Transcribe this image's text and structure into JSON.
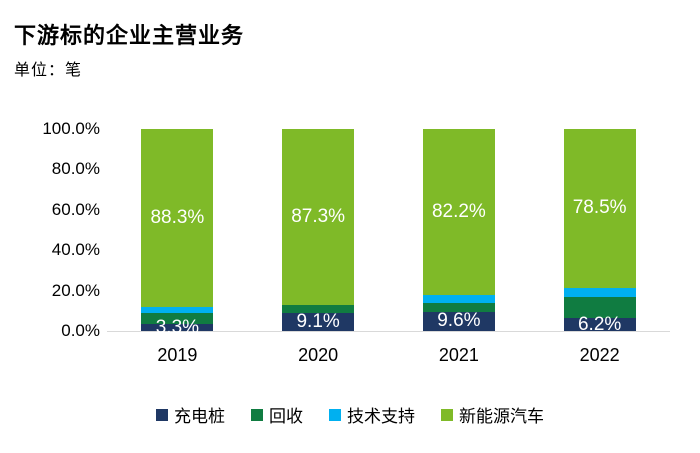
{
  "header": {
    "title": "下游标的企业主营业务",
    "subtitle": "单位：笔"
  },
  "colors": {
    "charging_pile": "#1F3864",
    "recycling": "#107C41",
    "tech_support": "#00B0F0",
    "nev": "#7FBA28",
    "axis_line": "#D9D9D9",
    "text": "#000000",
    "data_label": "#FFFFFF",
    "background": "#FFFFFF"
  },
  "chart_data": {
    "type": "bar",
    "stacked": true,
    "percent_stacked": true,
    "title": "下游标的企业主营业务",
    "subtitle": "单位：笔",
    "categories": [
      "2019",
      "2020",
      "2021",
      "2022"
    ],
    "series": [
      {
        "name": "充电桩",
        "color": "#1F3864",
        "values": [
          3.3,
          9.1,
          9.6,
          6.2
        ],
        "labels": [
          "3.3%",
          "9.1%",
          "9.6%",
          "6.2%"
        ]
      },
      {
        "name": "回收",
        "color": "#107C41",
        "values": [
          5.8,
          3.6,
          4.1,
          10.5
        ],
        "labels": null
      },
      {
        "name": "技术支持",
        "color": "#00B0F0",
        "values": [
          2.6,
          0.0,
          4.1,
          4.8
        ],
        "labels": null
      },
      {
        "name": "新能源汽车",
        "color": "#7FBA28",
        "values": [
          88.3,
          87.3,
          82.2,
          78.5
        ],
        "labels": [
          "88.3%",
          "87.3%",
          "82.2%",
          "78.5%"
        ]
      }
    ],
    "ylim": [
      0,
      100
    ],
    "yticks": [
      "100.0%",
      "80.0%",
      "60.0%",
      "40.0%",
      "20.0%",
      "0.0%"
    ],
    "xlabel": "",
    "ylabel": "",
    "grid": false,
    "legend_position": "bottom"
  }
}
